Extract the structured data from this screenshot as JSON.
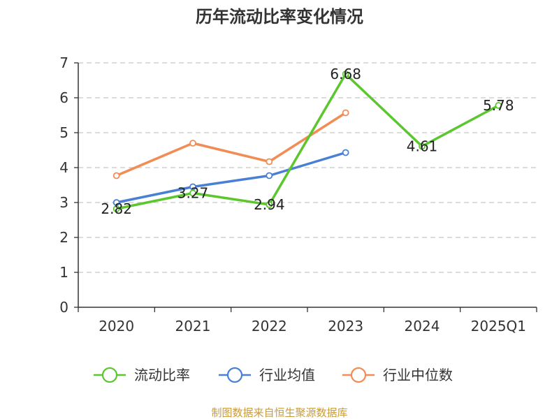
{
  "chart_data": {
    "type": "line",
    "title": "历年流动比率变化情况",
    "categories": [
      "2020",
      "2021",
      "2022",
      "2023",
      "2024",
      "2025Q1"
    ],
    "ylim": [
      0,
      7
    ],
    "yticks": [
      0,
      1,
      2,
      3,
      4,
      5,
      6,
      7
    ],
    "grid": true,
    "legend_position": "bottom",
    "series": [
      {
        "name": "流动比率",
        "color": "#5cc62e",
        "values": [
          2.82,
          3.27,
          2.94,
          6.68,
          4.61,
          5.78
        ],
        "show_labels": true
      },
      {
        "name": "行业均值",
        "color": "#4a7fd6",
        "values": [
          3.0,
          3.45,
          3.77,
          4.43,
          null,
          null
        ],
        "show_labels": false
      },
      {
        "name": "行业中位数",
        "color": "#f28c55",
        "values": [
          3.77,
          4.7,
          4.17,
          5.57,
          null,
          null
        ],
        "show_labels": false
      }
    ],
    "source": "制图数据来自恒生聚源数据库"
  }
}
